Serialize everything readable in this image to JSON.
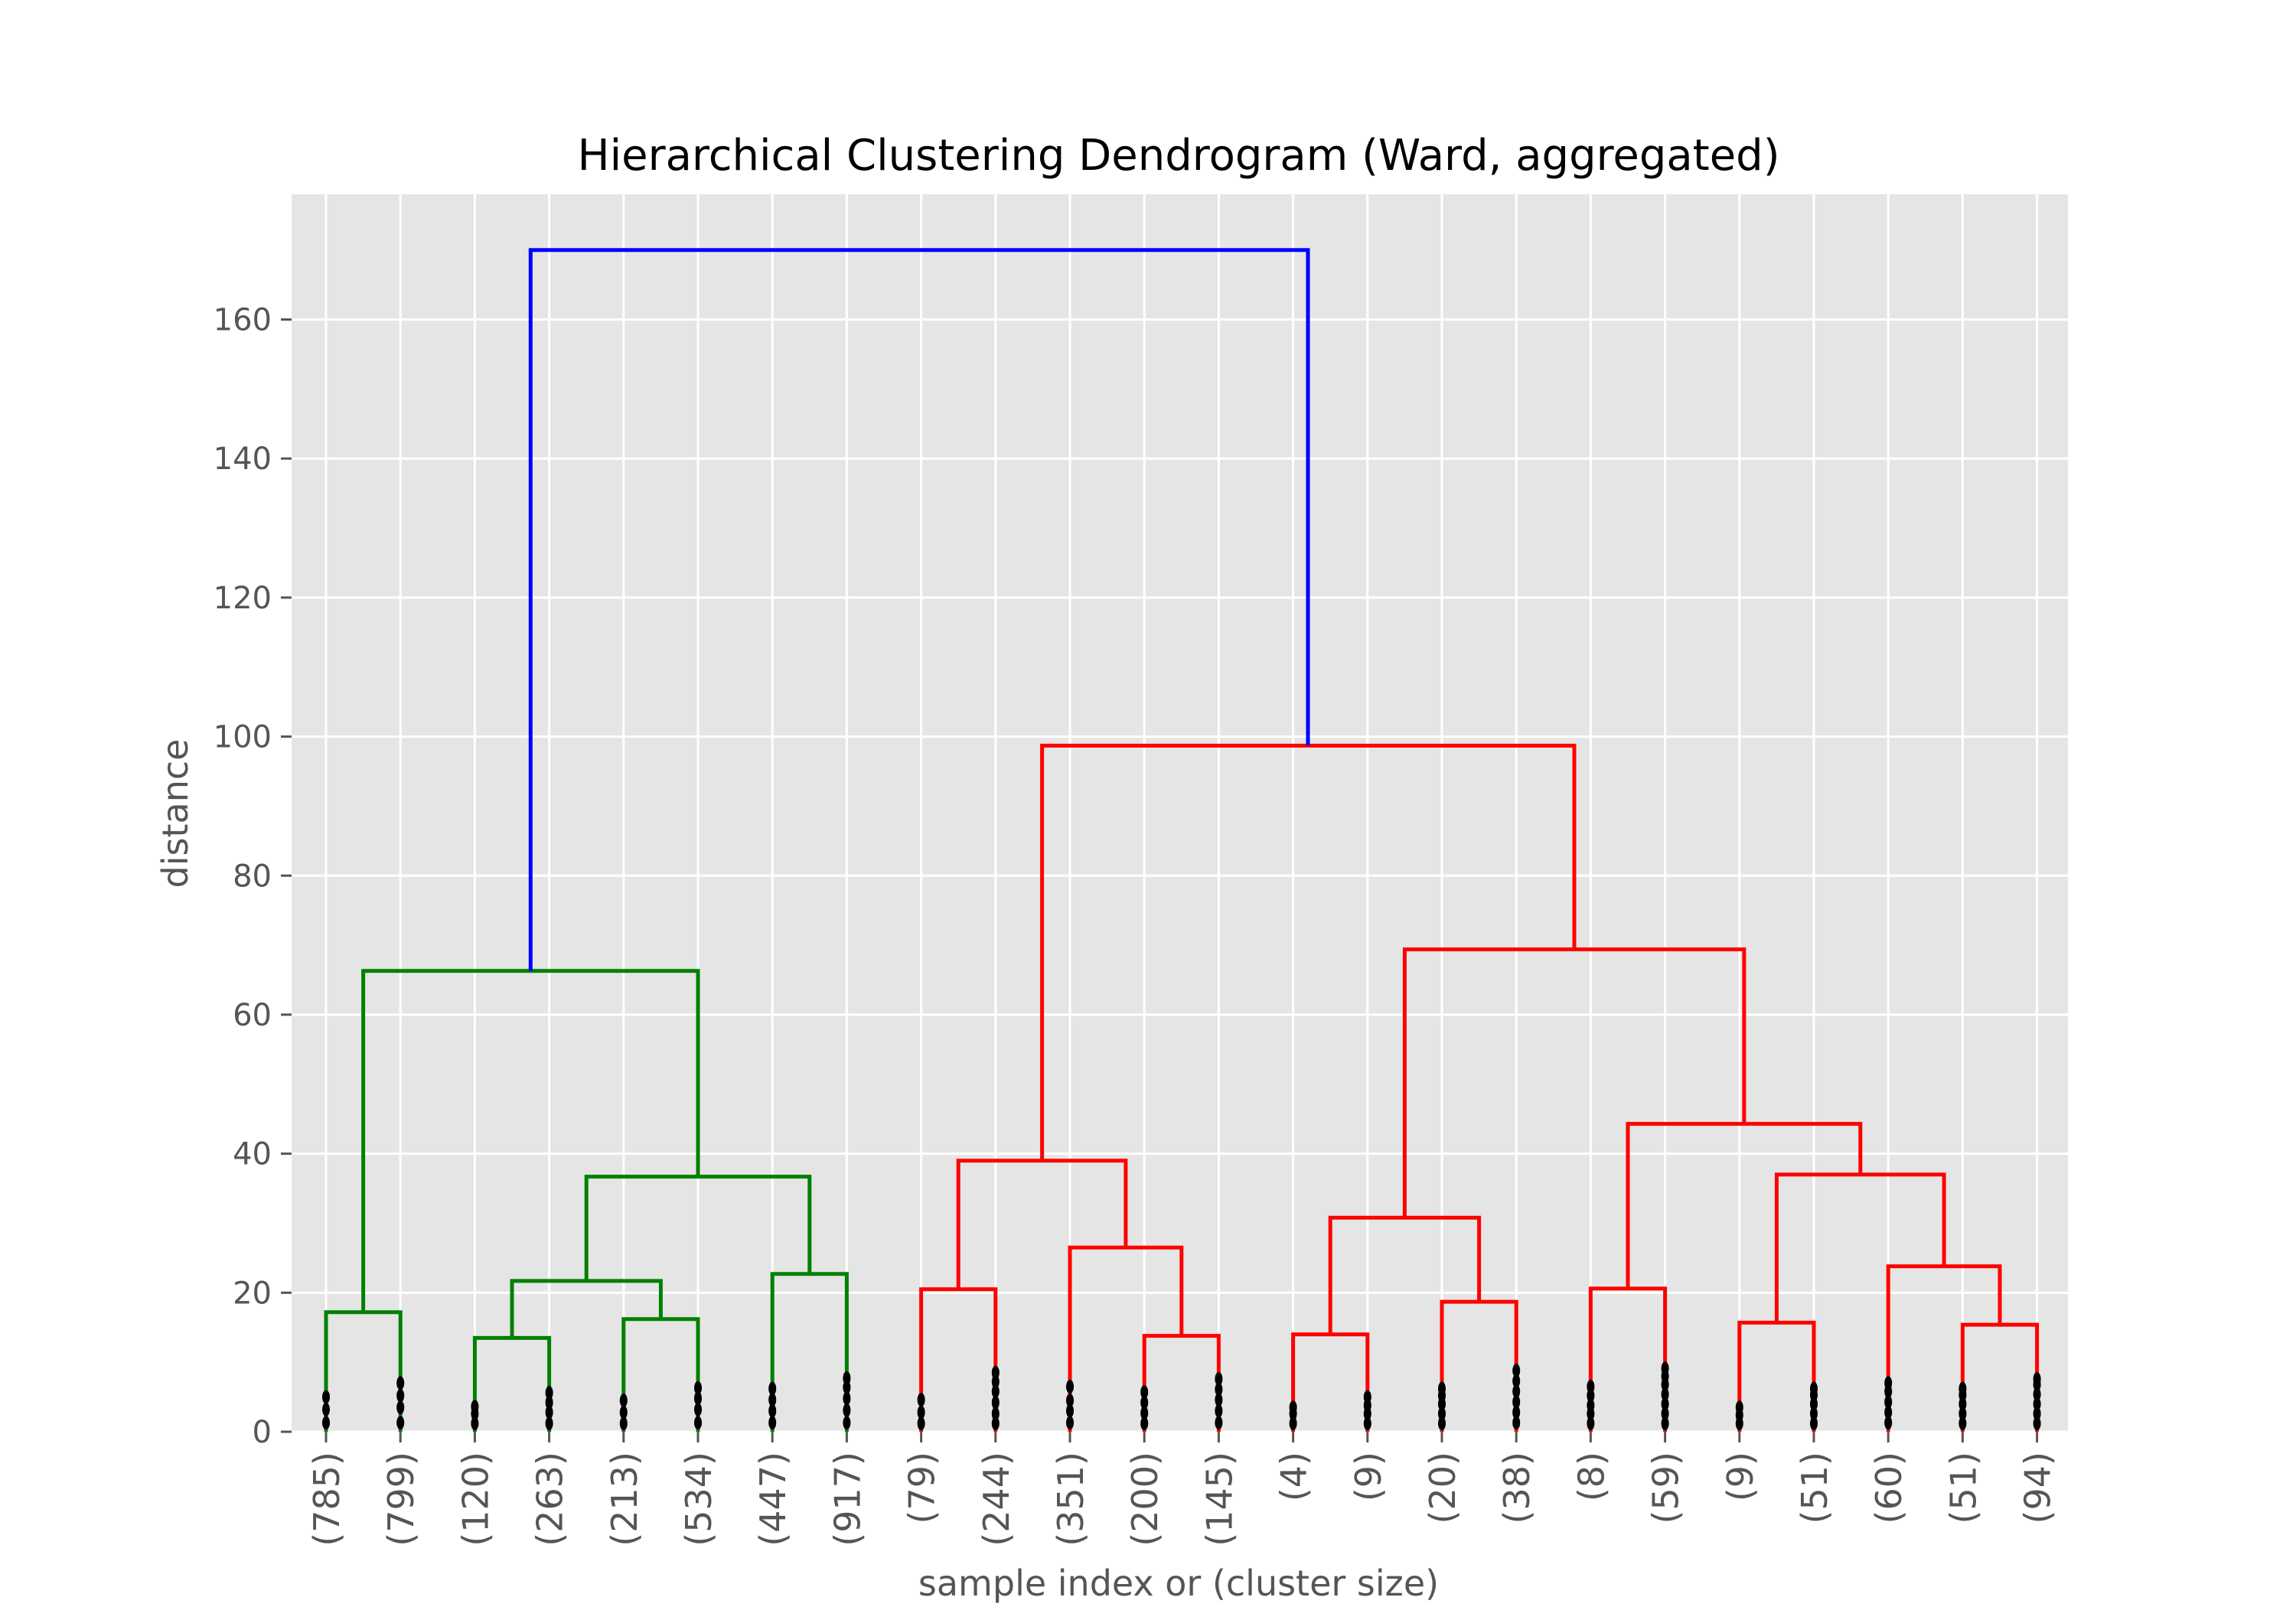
{
  "chart_data": {
    "type": "dendrogram",
    "title": "Hierarchical Clustering Dendrogram (Ward, aggregated)",
    "xlabel": "sample index or (cluster size)",
    "ylabel": "distance",
    "ylim": [
      0,
      178
    ],
    "yticks": [
      0,
      20,
      40,
      60,
      80,
      100,
      120,
      140,
      160
    ],
    "grid": true,
    "colors": {
      "background": "#e5e5e5",
      "grid": "#ffffff",
      "cluster_1": "#008000",
      "cluster_2": "#ff0000",
      "root": "#0000ff",
      "leaf_marks": "#000000"
    },
    "leaves": [
      "(785)",
      "(799)",
      "(120)",
      "(263)",
      "(213)",
      "(534)",
      "(447)",
      "(917)",
      "(79)",
      "(244)",
      "(351)",
      "(200)",
      "(145)",
      "(4)",
      "(9)",
      "(20)",
      "(38)",
      "(8)",
      "(59)",
      "(9)",
      "(51)",
      "(60)",
      "(51)",
      "(94)"
    ],
    "links": [
      {
        "x": [
          0,
          0,
          1,
          1
        ],
        "y": [
          0,
          17.2,
          17.2,
          0
        ],
        "color": "#008000"
      },
      {
        "x": [
          2,
          2,
          3,
          3
        ],
        "y": [
          0,
          13.5,
          13.5,
          0
        ],
        "color": "#008000"
      },
      {
        "x": [
          4,
          4,
          5,
          5
        ],
        "y": [
          0,
          16.2,
          16.2,
          0
        ],
        "color": "#008000"
      },
      {
        "x": [
          2.5,
          2.5,
          4.5,
          4.5
        ],
        "y": [
          13.5,
          21.7,
          21.7,
          16.2
        ],
        "color": "#008000"
      },
      {
        "x": [
          6,
          6,
          7,
          7
        ],
        "y": [
          0,
          22.7,
          22.7,
          0
        ],
        "color": "#008000"
      },
      {
        "x": [
          3.5,
          3.5,
          6.5,
          6.5
        ],
        "y": [
          21.7,
          36.7,
          36.7,
          22.7
        ],
        "color": "#008000"
      },
      {
        "x": [
          0.5,
          0.5,
          5,
          5
        ],
        "y": [
          17.2,
          66.3,
          66.3,
          36.7
        ],
        "color": "#008000"
      },
      {
        "x": [
          8,
          8,
          9,
          9
        ],
        "y": [
          0,
          20.5,
          20.5,
          0
        ],
        "color": "#ff0000"
      },
      {
        "x": [
          11,
          11,
          12,
          12
        ],
        "y": [
          0,
          13.8,
          13.8,
          0
        ],
        "color": "#ff0000"
      },
      {
        "x": [
          10,
          10,
          11.5,
          11.5
        ],
        "y": [
          0,
          26.5,
          26.5,
          13.8
        ],
        "color": "#ff0000"
      },
      {
        "x": [
          8.5,
          8.5,
          10.75,
          10.75
        ],
        "y": [
          20.5,
          39.0,
          39.0,
          26.5
        ],
        "color": "#ff0000"
      },
      {
        "x": [
          13,
          13,
          14,
          14
        ],
        "y": [
          0,
          14.0,
          14.0,
          0
        ],
        "color": "#ff0000"
      },
      {
        "x": [
          15,
          15,
          16,
          16
        ],
        "y": [
          0,
          18.7,
          18.7,
          0
        ],
        "color": "#ff0000"
      },
      {
        "x": [
          13.5,
          13.5,
          15.5,
          15.5
        ],
        "y": [
          14.0,
          30.8,
          30.8,
          18.7
        ],
        "color": "#ff0000"
      },
      {
        "x": [
          17,
          17,
          18,
          18
        ],
        "y": [
          0,
          20.6,
          20.6,
          0
        ],
        "color": "#ff0000"
      },
      {
        "x": [
          19,
          19,
          20,
          20
        ],
        "y": [
          0,
          15.7,
          15.7,
          0
        ],
        "color": "#ff0000"
      },
      {
        "x": [
          22,
          22,
          23,
          23
        ],
        "y": [
          0,
          15.4,
          15.4,
          0
        ],
        "color": "#ff0000"
      },
      {
        "x": [
          21,
          21,
          22.5,
          22.5
        ],
        "y": [
          0,
          23.8,
          23.8,
          15.4
        ],
        "color": "#ff0000"
      },
      {
        "x": [
          19.5,
          19.5,
          21.75,
          21.75
        ],
        "y": [
          15.7,
          37.0,
          37.0,
          23.8
        ],
        "color": "#ff0000"
      },
      {
        "x": [
          17.5,
          17.5,
          20.625,
          20.625
        ],
        "y": [
          20.6,
          44.3,
          44.3,
          37.0
        ],
        "color": "#ff0000"
      },
      {
        "x": [
          14.5,
          14.5,
          19.0625,
          19.0625
        ],
        "y": [
          30.8,
          69.4,
          69.4,
          44.3
        ],
        "color": "#ff0000"
      },
      {
        "x": [
          9.625,
          9.625,
          16.78,
          16.78
        ],
        "y": [
          39.0,
          98.7,
          98.7,
          69.4
        ],
        "color": "#ff0000"
      },
      {
        "x": [
          2.75,
          2.75,
          13.2,
          13.2
        ],
        "y": [
          66.3,
          170.0,
          170.0,
          98.7
        ],
        "color": "#0000ff"
      }
    ],
    "leaf_dots": [
      [
        1.3,
        3.2,
        5.0
      ],
      [
        1.3,
        3.5,
        5.2,
        7.0
      ],
      [
        1.2,
        2.6,
        3.6
      ],
      [
        1.2,
        2.8,
        4.2,
        5.6
      ],
      [
        1.2,
        2.8,
        4.5
      ],
      [
        1.3,
        3.2,
        4.8,
        6.3
      ],
      [
        1.3,
        3.0,
        4.6,
        6.2
      ],
      [
        1.3,
        3.1,
        4.8,
        6.4,
        7.7
      ],
      [
        1.2,
        2.8,
        4.6
      ],
      [
        1.2,
        2.6,
        4.2,
        5.8,
        7.2,
        8.5
      ],
      [
        1.3,
        3.0,
        4.5,
        6.5
      ],
      [
        1.2,
        2.7,
        4.2,
        5.7
      ],
      [
        1.3,
        3.0,
        4.6,
        6.1,
        7.6
      ],
      [
        1.2,
        2.6,
        3.5
      ],
      [
        1.2,
        2.6,
        3.8,
        5.0
      ],
      [
        1.2,
        2.6,
        4.0,
        5.2,
        6.2
      ],
      [
        1.3,
        2.8,
        4.3,
        5.8,
        7.3,
        8.8
      ],
      [
        1.2,
        2.6,
        3.8,
        5.2,
        6.5
      ],
      [
        1.2,
        2.6,
        4.0,
        5.4,
        6.8,
        8.0,
        9.1
      ],
      [
        1.2,
        2.4,
        3.5
      ],
      [
        1.2,
        2.6,
        4.0,
        5.3,
        6.2
      ],
      [
        1.3,
        2.8,
        4.3,
        5.8,
        7.0
      ],
      [
        1.2,
        2.6,
        4.0,
        5.3,
        6.2
      ],
      [
        1.2,
        2.6,
        4.0,
        5.4,
        6.8,
        7.6
      ]
    ]
  }
}
